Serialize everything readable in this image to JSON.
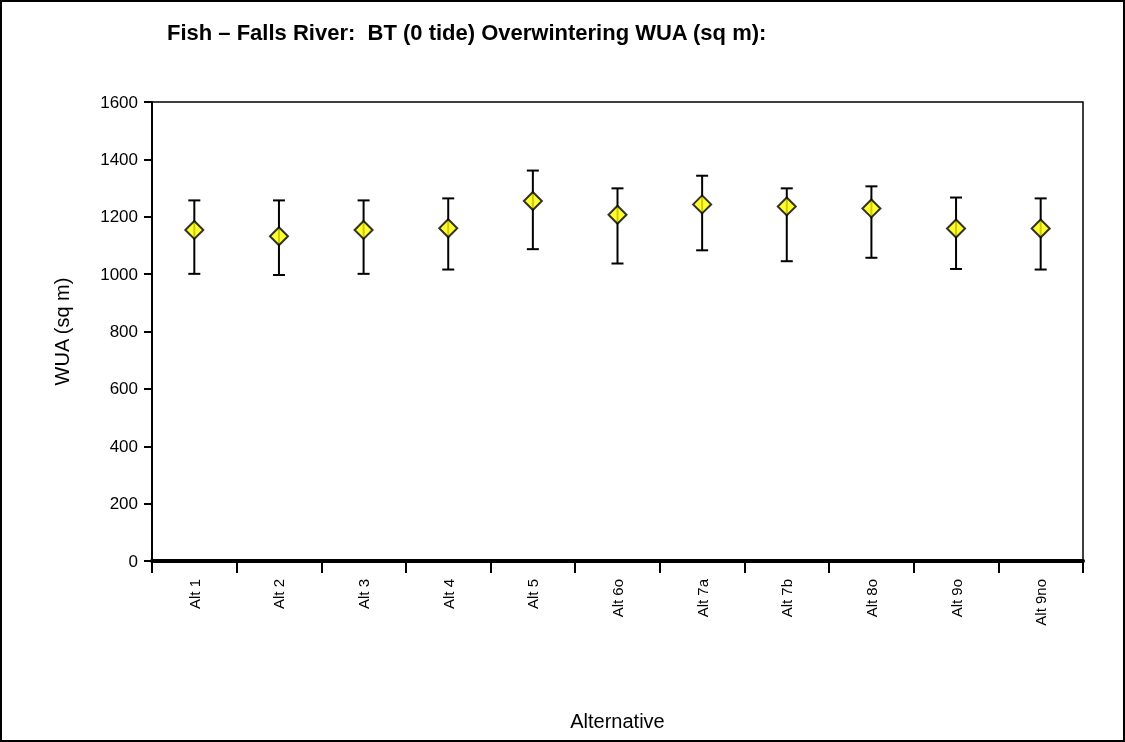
{
  "chart_data": {
    "type": "scatter",
    "title": "Fish – Falls River:  BT (0 tide) Overwintering WUA (sq m):",
    "xlabel": "Alternative",
    "ylabel": "WUA (sq m)",
    "categories": [
      "Alt 1",
      "Alt 2",
      "Alt 3",
      "Alt 4",
      "Alt 5",
      "Alt 6o",
      "Alt 7a",
      "Alt 7b",
      "Alt 8o",
      "Alt 9o",
      "Alt 9no"
    ],
    "values": [
      1154,
      1132,
      1154,
      1160,
      1255,
      1207,
      1243,
      1236,
      1229,
      1159,
      1159
    ],
    "errors": [
      [
        1001,
        1257
      ],
      [
        997,
        1257
      ],
      [
        1001,
        1257
      ],
      [
        1016,
        1264
      ],
      [
        1087,
        1361
      ],
      [
        1037,
        1299
      ],
      [
        1083,
        1343
      ],
      [
        1045,
        1299
      ],
      [
        1057,
        1306
      ],
      [
        1018,
        1267
      ],
      [
        1016,
        1264
      ]
    ],
    "color": "#ffff00",
    "marker": "diamond",
    "ylim": [
      0,
      1600
    ],
    "yticks": [
      0,
      200,
      400,
      600,
      800,
      1000,
      1200,
      1400,
      1600
    ],
    "grid": false
  }
}
